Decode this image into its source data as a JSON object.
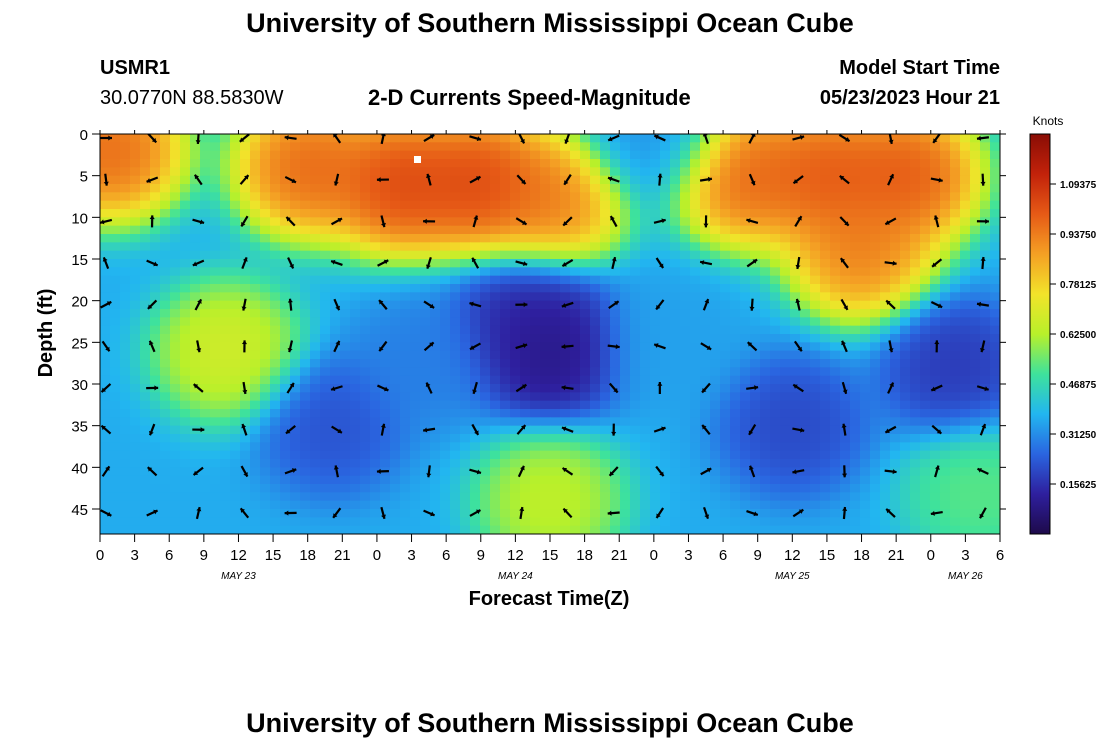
{
  "page": {
    "title": "University of Southern Mississippi Ocean Cube",
    "station": "USMR1",
    "location": "30.0770N  88.5830W",
    "subtitle": "2-D Currents Speed-Magnitude",
    "model_start_label": "Model Start Time",
    "model_start_value": "05/23/2023 Hour 21",
    "footer_title": "University of Southern Mississippi Ocean Cube"
  },
  "chart_data": {
    "type": "heatmap",
    "title": "2-D Currents Speed-Magnitude",
    "xlabel": "Forecast Time(Z)",
    "ylabel": "Depth (ft)",
    "x_range_hours": [
      0,
      78
    ],
    "ylim": [
      0,
      48
    ],
    "y_inverted": true,
    "x_ticks": [
      "0",
      "3",
      "6",
      "9",
      "12",
      "15",
      "18",
      "21",
      "0",
      "3",
      "6",
      "9",
      "12",
      "15",
      "18",
      "21",
      "0",
      "3",
      "6",
      "9",
      "12",
      "15",
      "18",
      "21",
      "0",
      "3",
      "6"
    ],
    "y_ticks": [
      0,
      5,
      10,
      15,
      20,
      25,
      30,
      35,
      40,
      45
    ],
    "date_labels": [
      {
        "label": "MAY 23",
        "hour": 12
      },
      {
        "label": "MAY 24",
        "hour": 36
      },
      {
        "label": "MAY 25",
        "hour": 60
      },
      {
        "label": "MAY 26",
        "hour": 75
      }
    ],
    "colorbar": {
      "title": "Knots",
      "range": [
        0,
        1.25
      ],
      "ticks": [
        "1.09375",
        "0.93750",
        "0.78125",
        "0.62500",
        "0.46875",
        "0.31250",
        "0.15625"
      ],
      "colors": [
        "#1e0a4a",
        "#2e1f9e",
        "#2a65e0",
        "#22b6f0",
        "#3ee29c",
        "#b8f02a",
        "#f2e32a",
        "#f4a024",
        "#e65a16",
        "#c2220a",
        "#8a0d05"
      ]
    },
    "speed_blobs": [
      {
        "hour": 1,
        "depth": 2,
        "value": 1.05
      },
      {
        "hour": 18,
        "depth": 4,
        "value": 1.05
      },
      {
        "hour": 26,
        "depth": 6,
        "value": 1.12
      },
      {
        "hour": 33,
        "depth": 6,
        "value": 1.12
      },
      {
        "hour": 39,
        "depth": 8,
        "value": 1.0
      },
      {
        "hour": 48,
        "depth": 0,
        "value": 0.32
      },
      {
        "hour": 49,
        "depth": 25,
        "value": 0.34
      },
      {
        "hour": 56,
        "depth": 5,
        "value": 1.05
      },
      {
        "hour": 63,
        "depth": 5,
        "value": 1.08
      },
      {
        "hour": 70,
        "depth": 5,
        "value": 1.08
      },
      {
        "hour": 66,
        "depth": 14,
        "value": 1.0
      },
      {
        "hour": 11,
        "depth": 26,
        "value": 0.72
      },
      {
        "hour": 39,
        "depth": 26,
        "value": 0.05
      },
      {
        "hour": 37,
        "depth": 22,
        "value": 0.12
      },
      {
        "hour": 39,
        "depth": 44,
        "value": 0.68
      },
      {
        "hour": 76,
        "depth": 43,
        "value": 0.55
      },
      {
        "hour": 60,
        "depth": 35,
        "value": 0.18
      },
      {
        "hour": 74,
        "depth": 28,
        "value": 0.15
      },
      {
        "hour": 20,
        "depth": 35,
        "value": 0.2
      },
      {
        "hour": 28,
        "depth": 27,
        "value": 0.28
      }
    ],
    "speed_background": 0.36,
    "vector_hours": [
      0,
      4,
      8,
      12,
      16,
      20,
      24,
      28,
      32,
      36,
      40,
      44,
      48,
      52,
      56,
      60,
      64,
      68,
      72,
      76
    ],
    "vector_depths": [
      0,
      5,
      10,
      15,
      20,
      25,
      30,
      35,
      40,
      45
    ]
  }
}
